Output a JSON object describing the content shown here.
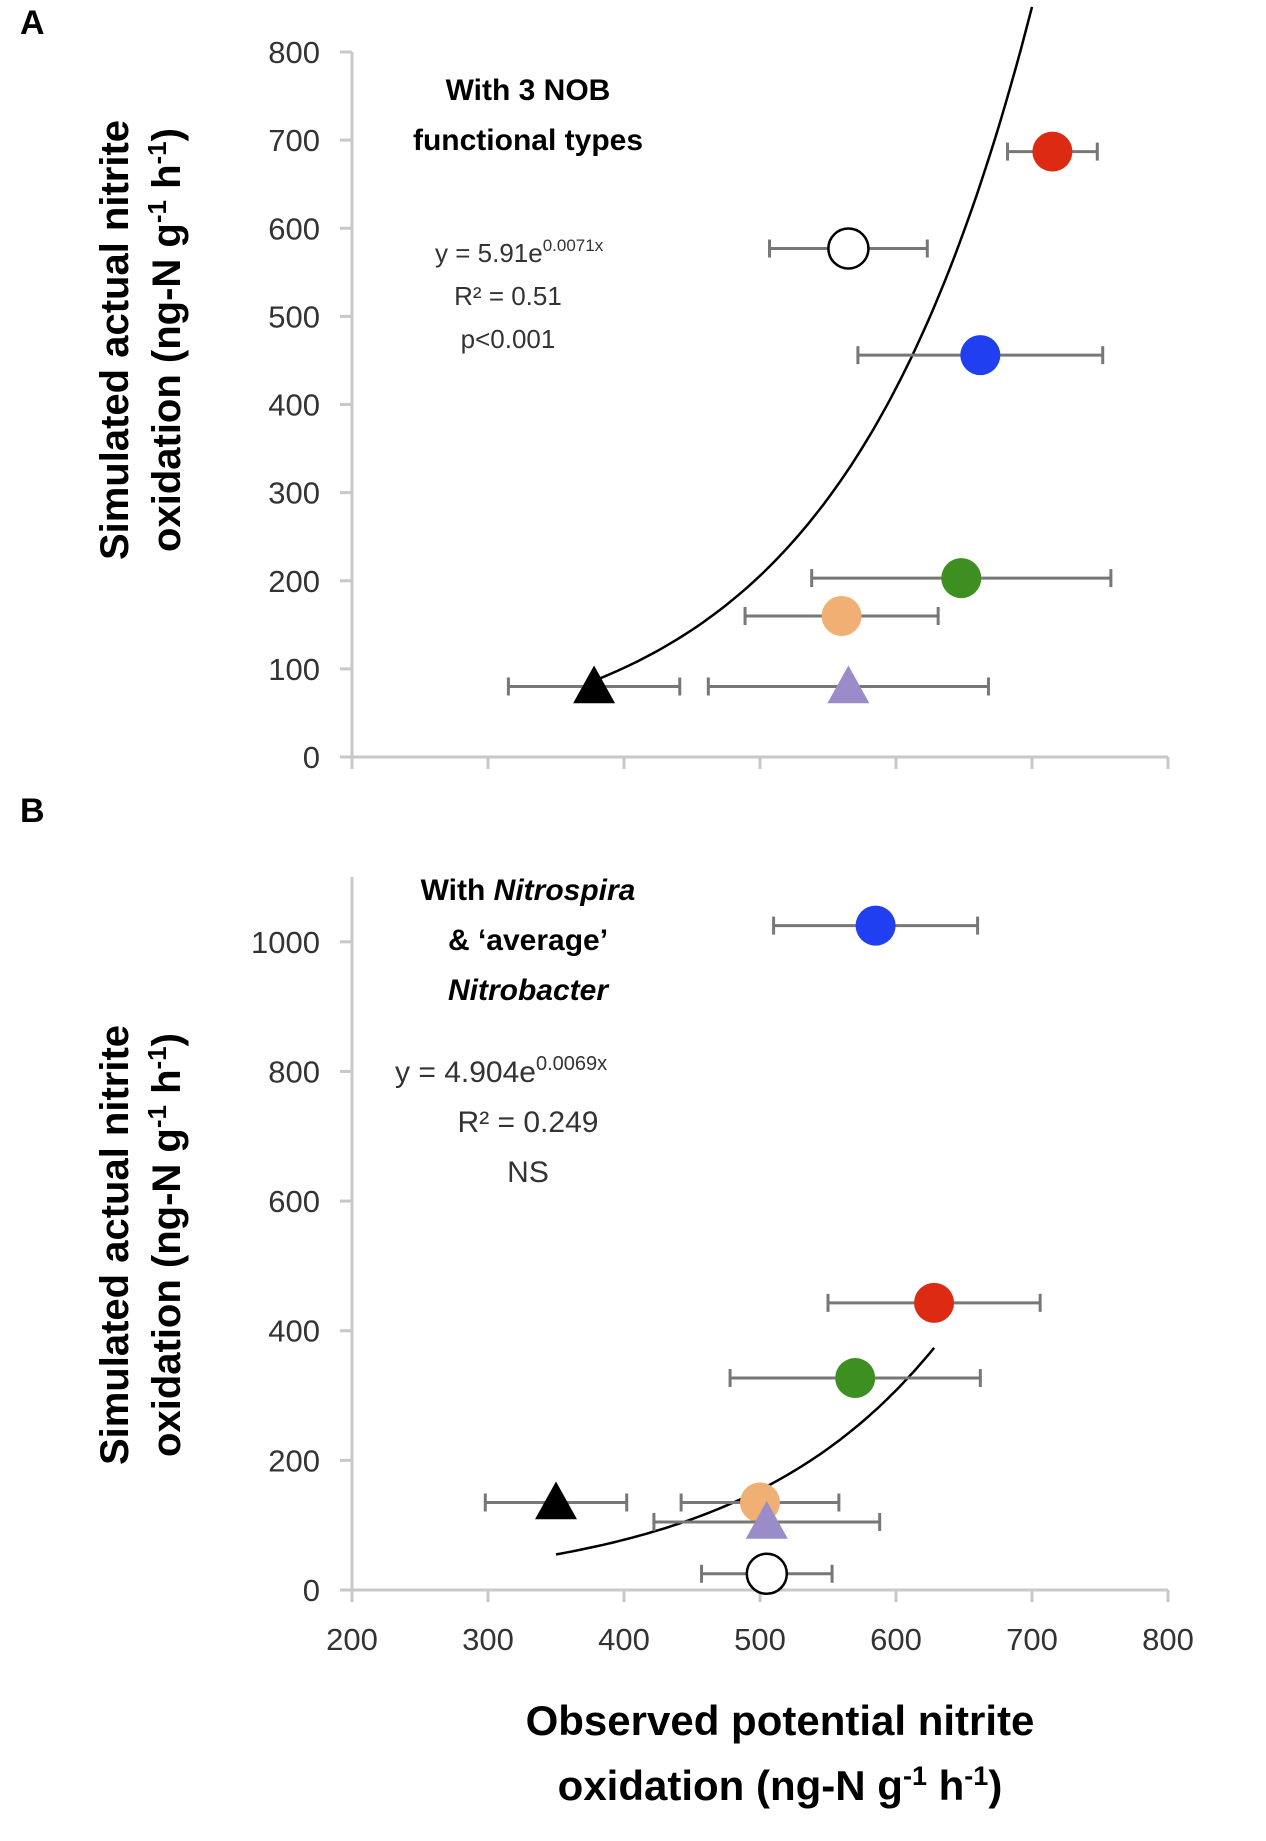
{
  "chart_data": [
    {
      "panel_label": "A",
      "type": "scatter",
      "xlabel": "",
      "ylabel_line1": "Simulated actual nitrite",
      "ylabel_line2_prefix": "oxidation (ng-N g",
      "ylabel_line2_sup1": "-1",
      "ylabel_line2_mid": " h",
      "ylabel_line2_sup2": "-1",
      "ylabel_line2_suffix": ")",
      "xlim": [
        200,
        800
      ],
      "ylim": [
        0,
        800
      ],
      "xticks_minor": [
        200,
        300,
        400,
        500,
        600,
        700,
        800
      ],
      "yticks": [
        0,
        100,
        200,
        300,
        400,
        500,
        600,
        700,
        800
      ],
      "title_line1": "With 3 NOB",
      "title_line2": "functional types",
      "equation_prefix": "y = 5.91e",
      "equation_exponent": "0.0071x",
      "r2_label": "R² = 0.51",
      "p_label": "p<0.001",
      "fit": {
        "a": 5.91,
        "b": 0.0071,
        "x_start": 378,
        "x_end": 700
      },
      "points": [
        {
          "name": "red",
          "x": 715,
          "y": 687,
          "xerr": 33,
          "shape": "circle",
          "color": "#dd2a13"
        },
        {
          "name": "white",
          "x": 565,
          "y": 577,
          "xerr": 58,
          "shape": "circle",
          "color": "#ffffff"
        },
        {
          "name": "blue",
          "x": 662,
          "y": 456,
          "xerr": 90,
          "shape": "circle",
          "color": "#1f3ff0"
        },
        {
          "name": "green",
          "x": 648,
          "y": 203,
          "xerr": 110,
          "shape": "circle",
          "color": "#3d8f22"
        },
        {
          "name": "orange",
          "x": 560,
          "y": 160,
          "xerr": 71,
          "shape": "circle",
          "color": "#f0b074"
        },
        {
          "name": "black",
          "x": 378,
          "y": 80,
          "xerr": 63,
          "shape": "triangle",
          "color": "#000000"
        },
        {
          "name": "purple",
          "x": 565,
          "y": 80,
          "xerr": 103,
          "shape": "triangle",
          "color": "#9a8cc9"
        }
      ]
    },
    {
      "panel_label": "B",
      "type": "scatter",
      "xlabel_line1": "Observed potential nitrite",
      "xlabel_line2_prefix": "oxidation (ng-N g",
      "xlabel_line2_sup1": "-1",
      "xlabel_line2_mid": " h",
      "xlabel_line2_sup2": "-1",
      "xlabel_line2_suffix": ")",
      "ylabel_line1": "Simulated actual nitrite",
      "ylabel_line2_prefix": "oxidation (ng-N g",
      "ylabel_line2_sup1": "-1",
      "ylabel_line2_mid": " h",
      "ylabel_line2_sup2": "-1",
      "ylabel_line2_suffix": ")",
      "xlim": [
        200,
        800
      ],
      "ylim": [
        0,
        1100
      ],
      "xticks": [
        200,
        300,
        400,
        500,
        600,
        700,
        800
      ],
      "yticks": [
        0,
        200,
        400,
        600,
        800,
        1000
      ],
      "title_line1_prefix": "With ",
      "title_line1_italic": "Nitrospira",
      "title_line2": "& ‘average’",
      "title_line3_italic": "Nitrobacter",
      "equation_prefix": "y = 4.904e",
      "equation_exponent": "0.0069x",
      "r2_label": "R² = 0.249",
      "p_label": "NS",
      "fit": {
        "a": 4.904,
        "b": 0.0069,
        "x_start": 350,
        "x_end": 628
      },
      "points": [
        {
          "name": "blue",
          "x": 585,
          "y": 1025,
          "xerr": 75,
          "shape": "circle",
          "color": "#1f3ff0"
        },
        {
          "name": "red",
          "x": 628,
          "y": 443,
          "xerr": 78,
          "shape": "circle",
          "color": "#dd2a13"
        },
        {
          "name": "green",
          "x": 570,
          "y": 327,
          "xerr": 92,
          "shape": "circle",
          "color": "#3d8f22"
        },
        {
          "name": "black",
          "x": 350,
          "y": 135,
          "xerr": 52,
          "shape": "triangle",
          "color": "#000000"
        },
        {
          "name": "orange",
          "x": 500,
          "y": 135,
          "xerr": 58,
          "shape": "circle",
          "color": "#f0b074"
        },
        {
          "name": "purple",
          "x": 505,
          "y": 105,
          "xerr": 83,
          "shape": "triangle",
          "color": "#9a8cc9"
        },
        {
          "name": "white",
          "x": 505,
          "y": 25,
          "xerr": 48,
          "shape": "circle",
          "color": "#ffffff"
        }
      ]
    }
  ]
}
